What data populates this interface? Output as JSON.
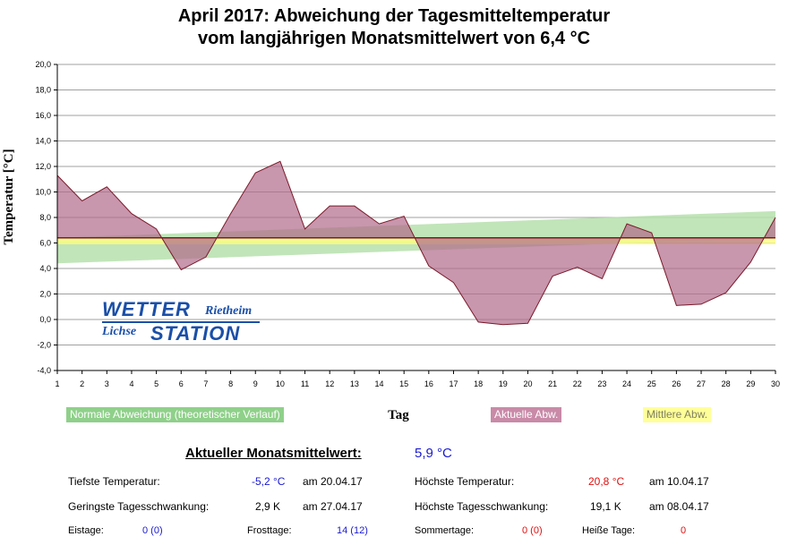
{
  "title_line1": "April 2017: Abweichung der Tagesmitteltemperatur",
  "title_line2": "vom langjährigen Monatsmittelwert von 6,4 °C",
  "logo": {
    "word1": "WETTER",
    "word2": "Rietheim",
    "word3": "Lichse",
    "word4": "STATION"
  },
  "colors": {
    "actual": "#b06a8a",
    "actual_line": "#7a1a2a",
    "normal_band": "#b6e0ad",
    "mean_band": "#ffff80",
    "mean_line": "#7a1a2a"
  },
  "chart_data": {
    "type": "area",
    "title": "April 2017: Abweichung der Tagesmitteltemperatur vom langjährigen Monatsmittelwert von 6,4 °C",
    "xlabel": "Tag",
    "ylabel": "Temperatur [°C]",
    "ylim": [
      -4,
      20
    ],
    "yticks": [
      "-4,0",
      "-2,0",
      "0,0",
      "2,0",
      "4,0",
      "6,0",
      "8,0",
      "10,0",
      "12,0",
      "14,0",
      "16,0",
      "18,0",
      "20,0"
    ],
    "ytick_values": [
      -4,
      -2,
      0,
      2,
      4,
      6,
      8,
      10,
      12,
      14,
      16,
      18,
      20
    ],
    "x": [
      1,
      2,
      3,
      4,
      5,
      6,
      7,
      8,
      9,
      10,
      11,
      12,
      13,
      14,
      15,
      16,
      17,
      18,
      19,
      20,
      21,
      22,
      23,
      24,
      25,
      26,
      27,
      28,
      29,
      30
    ],
    "baseline": 6.4,
    "mean_deviation_band": [
      5.9,
      6.4
    ],
    "grid": true,
    "series": [
      {
        "name": "Aktuelle Abw.",
        "values": [
          11.3,
          9.3,
          10.4,
          8.3,
          7.1,
          3.9,
          4.9,
          8.3,
          11.5,
          12.4,
          7.1,
          8.9,
          8.9,
          7.5,
          8.1,
          4.2,
          2.9,
          -0.2,
          -0.4,
          -0.3,
          3.4,
          4.1,
          3.2,
          7.5,
          6.8,
          1.1,
          1.2,
          2.1,
          4.5,
          8.0
        ]
      },
      {
        "name": "Normale Abweichung (theoretischer Verlauf)",
        "lower": [
          4.4,
          8.5
        ],
        "upper": [
          4.4,
          8.5
        ],
        "lower_values_note": "",
        "low": [
          4.4,
          6.4
        ],
        "high": [
          6.4,
          8.5
        ]
      }
    ]
  },
  "legend": {
    "normal": "Normale Abweichung (theoretischer Verlauf)",
    "actual": "Aktuelle Abw.",
    "mean": "Mittlere Abw."
  },
  "stats": {
    "header_label": "Aktueller Monatsmittelwert:",
    "header_value": "5,9 °C",
    "min_label": "Tiefste Temperatur:",
    "min_value": "-5,2 °C",
    "min_date": "am 20.04.17",
    "max_label": "Höchste Temperatur:",
    "max_value": "20,8 °C",
    "max_date": "am 10.04.17",
    "min_range_label": "Geringste Tagesschwankung:",
    "min_range_value": "2,9 K",
    "min_range_date": "am 27.04.17",
    "max_range_label": "Höchste Tagesschwankung:",
    "max_range_value": "19,1 K",
    "max_range_date": "am 08.04.17",
    "ice_label": "Eistage:",
    "ice_value": "0 (0)",
    "frost_label": "Frosttage:",
    "frost_value": "14 (12)",
    "summer_label": "Sommertage:",
    "summer_value": "0 (0)",
    "hot_label": "Heiße Tage:",
    "hot_value": "0"
  }
}
